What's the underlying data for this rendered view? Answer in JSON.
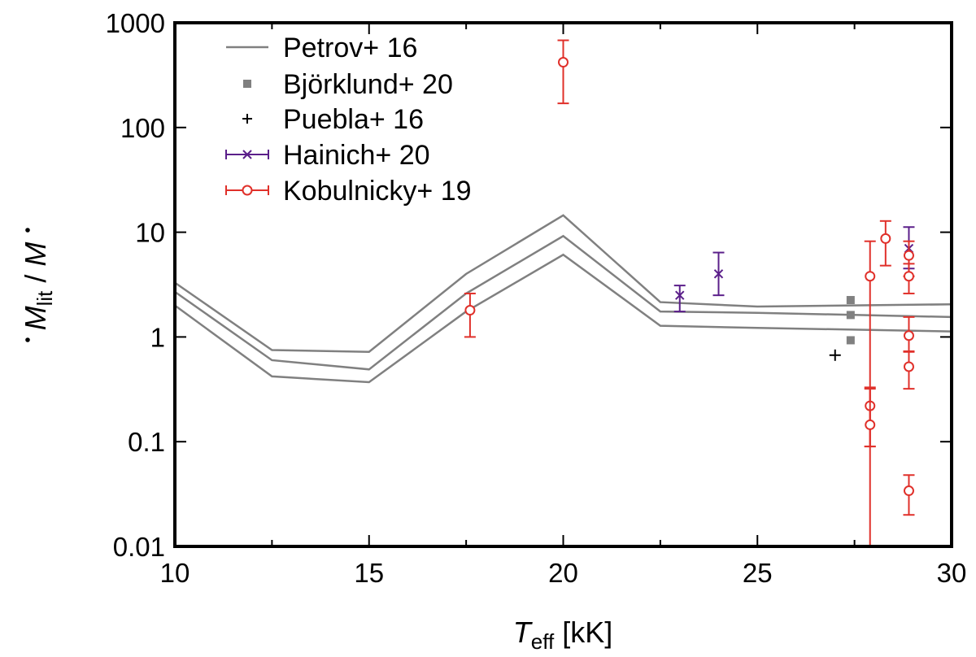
{
  "chart_data": {
    "type": "scatter",
    "xlabel": {
      "symbol": "T",
      "subscript": "eff",
      "unit": " [kK]"
    },
    "ylabel": {
      "symbol": "M",
      "subscript": "lit",
      "separator": " / ",
      "symbol2": "M"
    },
    "xlim": [
      10,
      30
    ],
    "ylim": [
      0.01,
      1000
    ],
    "y_scale": "log",
    "x_ticks": [
      10,
      15,
      20,
      25,
      30
    ],
    "x_tick_labels": [
      "10",
      "15",
      "20",
      "25",
      "30"
    ],
    "y_ticks": [
      0.01,
      0.1,
      1,
      10,
      100,
      1000
    ],
    "y_tick_labels": [
      "0.01",
      "0.1",
      "1",
      "10",
      "100",
      "1000"
    ],
    "legend_position": "top-left",
    "colors": {
      "petrov": "#808080",
      "bjorklund": "#808080",
      "puebla": "#000000",
      "hainich": "#5b1f8a",
      "kobulnicky": "#e0302a"
    },
    "series": [
      {
        "name": "Petrov+ 16",
        "kind": "lines",
        "x": [
          10,
          12.5,
          15,
          17.5,
          20,
          22.5,
          25,
          30
        ],
        "lines": [
          [
            3.3,
            0.75,
            0.72,
            4.0,
            14.5,
            2.15,
            1.95,
            2.05
          ],
          [
            2.7,
            0.6,
            0.49,
            2.6,
            9.2,
            1.75,
            1.7,
            1.55
          ],
          [
            2.0,
            0.42,
            0.37,
            1.75,
            6.1,
            1.28,
            1.22,
            1.13
          ]
        ]
      },
      {
        "name": "Björklund+ 20",
        "kind": "squares",
        "points": [
          [
            27.4,
            2.25
          ],
          [
            27.4,
            1.62
          ],
          [
            27.4,
            0.93
          ]
        ]
      },
      {
        "name": "Puebla+ 16",
        "kind": "plus",
        "points": [
          [
            27.0,
            0.67
          ]
        ]
      },
      {
        "name": "Hainich+ 20",
        "kind": "cross_err",
        "points": [
          {
            "x": 23.0,
            "y": 2.5,
            "ylo": 1.75,
            "yhi": 3.1
          },
          {
            "x": 24.0,
            "y": 4.0,
            "ylo": 2.5,
            "yhi": 6.4
          },
          {
            "x": 28.9,
            "y": 7.0,
            "ylo": 4.5,
            "yhi": 11.2
          }
        ]
      },
      {
        "name": "Kobulnicky+ 19",
        "kind": "circle_err",
        "points": [
          {
            "x": 17.6,
            "y": 1.8,
            "ylo": 1.0,
            "yhi": 2.6
          },
          {
            "x": 20.0,
            "y": 420,
            "ylo": 170,
            "yhi": 680
          },
          {
            "x": 27.9,
            "y": 3.8,
            "ylo": 0.01,
            "yhi": 8.2
          },
          {
            "x": 27.9,
            "y": 0.22,
            "ylo": 0.09,
            "yhi": 0.33
          },
          {
            "x": 27.9,
            "y": 0.145,
            "ylo": 0.09,
            "yhi": 0.32
          },
          {
            "x": 28.3,
            "y": 8.7,
            "ylo": 4.8,
            "yhi": 12.8
          },
          {
            "x": 28.9,
            "y": 6.0,
            "ylo": 3.8,
            "yhi": 8.2
          },
          {
            "x": 28.9,
            "y": 3.8,
            "ylo": 2.6,
            "yhi": 5.0
          },
          {
            "x": 28.9,
            "y": 1.03,
            "ylo": 0.72,
            "yhi": 1.55
          },
          {
            "x": 28.9,
            "y": 0.52,
            "ylo": 0.32,
            "yhi": 0.73
          },
          {
            "x": 28.9,
            "y": 0.034,
            "ylo": 0.02,
            "yhi": 0.048
          }
        ]
      }
    ]
  }
}
